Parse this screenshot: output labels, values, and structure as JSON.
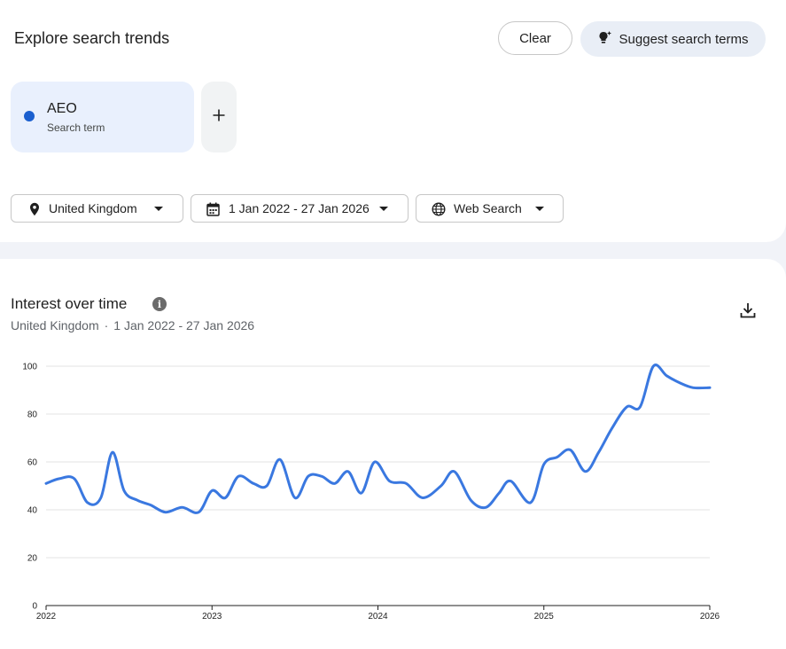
{
  "header": {
    "title": "Explore search trends",
    "clear_label": "Clear",
    "suggest_label": "Suggest search terms",
    "suggest_icon": "sparkle-bulb-icon"
  },
  "terms": [
    {
      "name": "AEO",
      "type": "Search term",
      "color": "#1a5fcf"
    }
  ],
  "filters": {
    "location": "United Kingdom",
    "date_range": "1 Jan 2022 - 27 Jan 2026",
    "search_type": "Web Search"
  },
  "chart": {
    "title": "Interest over time",
    "subtitle_location": "United Kingdom",
    "subtitle_separator": "·",
    "subtitle_range": "1 Jan 2022 - 27 Jan 2026"
  },
  "chart_data": {
    "type": "line",
    "title": "Interest over time",
    "xlabel": "",
    "ylabel": "",
    "ylim": [
      0,
      100
    ],
    "xlim": [
      2022,
      2026
    ],
    "y_ticks": [
      0,
      20,
      40,
      60,
      80,
      100
    ],
    "x_ticks": [
      "2022",
      "2023",
      "2024",
      "2025",
      "2026"
    ],
    "grid": true,
    "legend": "none",
    "series": [
      {
        "color": "#3a78e0",
        "x": [
          2022.0,
          2022.08,
          2022.17,
          2022.25,
          2022.33,
          2022.4,
          2022.47,
          2022.55,
          2022.63,
          2022.72,
          2022.82,
          2022.92,
          2023.0,
          2023.08,
          2023.16,
          2023.25,
          2023.33,
          2023.41,
          2023.5,
          2023.58,
          2023.66,
          2023.74,
          2023.82,
          2023.9,
          2023.98,
          2024.07,
          2024.17,
          2024.27,
          2024.38,
          2024.46,
          2024.56,
          2024.65,
          2024.73,
          2024.8,
          2024.92,
          2025.0,
          2025.08,
          2025.16,
          2025.25,
          2025.33,
          2025.41,
          2025.5,
          2025.58,
          2025.66,
          2025.74,
          2025.82,
          2025.9,
          2026.0
        ],
        "y": [
          51,
          53,
          53,
          43,
          45,
          64,
          48,
          44,
          42,
          39,
          41,
          39,
          48,
          45,
          54,
          51,
          50,
          61,
          45,
          54,
          54,
          51,
          56,
          47,
          60,
          52,
          51,
          45,
          50,
          56,
          44,
          41,
          47,
          52,
          43,
          59,
          62,
          65,
          56,
          64,
          74,
          83,
          83,
          100,
          96,
          93,
          91,
          91
        ]
      }
    ]
  }
}
